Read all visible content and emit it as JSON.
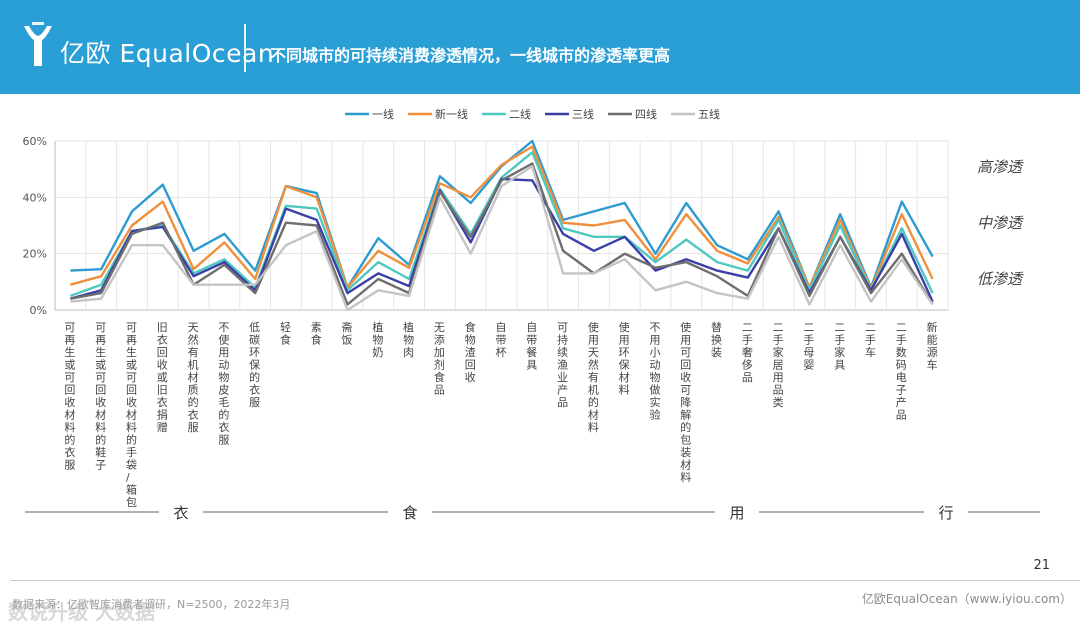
{
  "header": {
    "brand": "亿欧 EqualOcean",
    "title": "不同城市的可持续消费渗透情况，一线城市的渗透率更高"
  },
  "colors": {
    "header_bg": "#2a9fd6",
    "series": [
      "#2e9bd0",
      "#f0903c",
      "#4fc9bf",
      "#3a3fa8",
      "#6e6e6e",
      "#c4c4c4"
    ]
  },
  "chart_data": {
    "type": "line",
    "title": "",
    "ylabel": "",
    "ylim": [
      0,
      60
    ],
    "yticks": [
      "0%",
      "20%",
      "40%",
      "60%"
    ],
    "categories": [
      "可再生或可回收材料的衣服",
      "可再生或可回收材料的鞋子",
      "可再生或可回收材料的手袋/箱包",
      "旧衣回收或旧衣捐赠",
      "天然有机材质的衣服",
      "不使用动物皮毛的衣服",
      "低碳环保的衣服",
      "轻食",
      "素食",
      "斋饭",
      "植物奶",
      "植物肉",
      "无添加剂食品",
      "食物渣回收",
      "自带杯",
      "自带餐具",
      "可持续渔业产品",
      "使用天然有机的材料",
      "使用环保材料",
      "不用小动物做实验",
      "使用可回收可降解的包装材料",
      "替换装",
      "二手奢侈品",
      "二手家居用品类",
      "二手母婴",
      "二手家具",
      "二手车",
      "二手数码电子产品",
      "新能源车"
    ],
    "series": [
      {
        "name": "一线",
        "values": [
          14,
          14.5,
          35,
          44.5,
          21,
          27,
          14,
          44,
          41.5,
          8,
          25.5,
          16,
          47.5,
          38,
          51,
          60,
          32,
          35,
          38,
          20,
          38,
          23,
          18,
          35,
          8,
          34,
          8,
          38.5,
          19
        ]
      },
      {
        "name": "新一线",
        "values": [
          9,
          12,
          30,
          38.5,
          14.5,
          24,
          11,
          44,
          40,
          8,
          21,
          15,
          45,
          40,
          51.5,
          58,
          31,
          30,
          32,
          18,
          34,
          21,
          16.5,
          33,
          8,
          32,
          7.5,
          34,
          11
        ]
      },
      {
        "name": "二线",
        "values": [
          5,
          9,
          28,
          30,
          13,
          18,
          8,
          37,
          36,
          7,
          17,
          11,
          43,
          27,
          47,
          56,
          29,
          26,
          26,
          17,
          25,
          17,
          14,
          32,
          7,
          30,
          7,
          29,
          6
        ]
      },
      {
        "name": "三线",
        "values": [
          4,
          7,
          28,
          29.5,
          12,
          17,
          7,
          36,
          32,
          6,
          13,
          8.5,
          42.5,
          24,
          46.5,
          46,
          27,
          21,
          26,
          14,
          18,
          14,
          11.5,
          29,
          6,
          26,
          7,
          27,
          3
        ]
      },
      {
        "name": "四线",
        "values": [
          4,
          6,
          27,
          31,
          9,
          16,
          6,
          31,
          30,
          2,
          11,
          6,
          42,
          26,
          46,
          52,
          21,
          13,
          20,
          15,
          17,
          12,
          5,
          29,
          5,
          26,
          6,
          20,
          2
        ]
      },
      {
        "name": "五线",
        "values": [
          3,
          4,
          23,
          23,
          9,
          9,
          9,
          23,
          28,
          0,
          7,
          5,
          40,
          20,
          44,
          51,
          13,
          13,
          18,
          7,
          10,
          6,
          4,
          26,
          2,
          23,
          3,
          18,
          2
        ]
      }
    ],
    "legend_position": "top-center",
    "penetration_labels": [
      "高渗透",
      "中渗透",
      "低渗透"
    ],
    "groups": [
      "衣",
      "食",
      "用",
      "行"
    ]
  },
  "page_number": "21",
  "footer": {
    "source": "数据来源：亿欧智库消费者调研，N=2500，2022年3月",
    "brand": "亿欧EqualOcean（www.iyiou.com）",
    "watermark": "数说升级 大数据"
  }
}
